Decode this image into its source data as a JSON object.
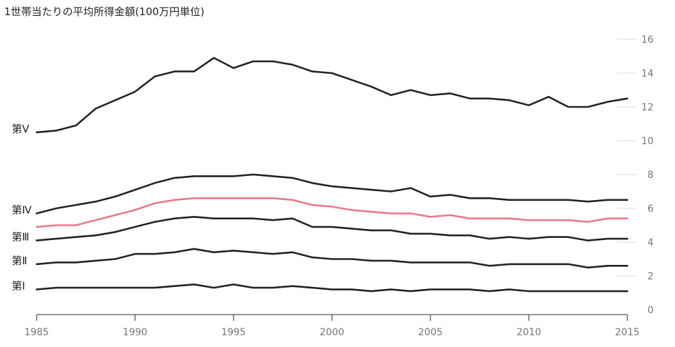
{
  "chart_data": {
    "type": "line",
    "title": "1世帯当たりの平均所得金額(100万円単位)",
    "xlabel": "",
    "ylabel": "",
    "xlim": [
      1985,
      2015
    ],
    "ylim": [
      0,
      16
    ],
    "x_ticks": [
      "1985",
      "1990",
      "1995",
      "2000",
      "2005",
      "2010",
      "2015"
    ],
    "y_ticks": [
      "0",
      "2",
      "4",
      "6",
      "8",
      "10",
      "12",
      "14",
      "16"
    ],
    "grid": "horizontal, right side",
    "x": [
      1985,
      1986,
      1987,
      1988,
      1989,
      1990,
      1991,
      1992,
      1993,
      1994,
      1995,
      1996,
      1997,
      1998,
      1999,
      2000,
      2001,
      2002,
      2003,
      2004,
      2005,
      2006,
      2007,
      2008,
      2009,
      2010,
      2011,
      2012,
      2013,
      2014,
      2015
    ],
    "series": [
      {
        "name": "第Ⅴ",
        "color": "#222222",
        "values": [
          10.5,
          10.6,
          10.9,
          11.9,
          12.4,
          12.9,
          13.8,
          14.1,
          14.1,
          14.9,
          14.3,
          14.7,
          14.7,
          14.5,
          14.1,
          14.0,
          13.6,
          13.2,
          12.7,
          13.0,
          12.7,
          12.8,
          12.5,
          12.5,
          12.4,
          12.1,
          12.6,
          12.0,
          12.0,
          12.3,
          12.5
        ]
      },
      {
        "name": "第Ⅳ",
        "color": "#222222",
        "values": [
          5.7,
          6.0,
          6.2,
          6.4,
          6.7,
          7.1,
          7.5,
          7.8,
          7.9,
          7.9,
          7.9,
          8.0,
          7.9,
          7.8,
          7.5,
          7.3,
          7.2,
          7.1,
          7.0,
          7.2,
          6.7,
          6.8,
          6.6,
          6.6,
          6.5,
          6.5,
          6.5,
          6.5,
          6.4,
          6.5,
          6.5
        ]
      },
      {
        "name": "",
        "color": "#e8788a",
        "values": [
          4.9,
          5.0,
          5.0,
          5.3,
          5.6,
          5.9,
          6.3,
          6.5,
          6.6,
          6.6,
          6.6,
          6.6,
          6.6,
          6.5,
          6.2,
          6.1,
          5.9,
          5.8,
          5.7,
          5.7,
          5.5,
          5.6,
          5.4,
          5.4,
          5.4,
          5.3,
          5.3,
          5.3,
          5.2,
          5.4,
          5.4
        ]
      },
      {
        "name": "第Ⅲ",
        "color": "#222222",
        "values": [
          4.1,
          4.2,
          4.3,
          4.4,
          4.6,
          4.9,
          5.2,
          5.4,
          5.5,
          5.4,
          5.4,
          5.4,
          5.3,
          5.4,
          4.9,
          4.9,
          4.8,
          4.7,
          4.7,
          4.5,
          4.5,
          4.4,
          4.4,
          4.2,
          4.3,
          4.2,
          4.3,
          4.3,
          4.1,
          4.2,
          4.2
        ]
      },
      {
        "name": "第Ⅱ",
        "color": "#222222",
        "values": [
          2.7,
          2.8,
          2.8,
          2.9,
          3.0,
          3.3,
          3.3,
          3.4,
          3.6,
          3.4,
          3.5,
          3.4,
          3.3,
          3.4,
          3.1,
          3.0,
          3.0,
          2.9,
          2.9,
          2.8,
          2.8,
          2.8,
          2.8,
          2.6,
          2.7,
          2.7,
          2.7,
          2.7,
          2.5,
          2.6,
          2.6
        ]
      },
      {
        "name": "第Ⅰ",
        "color": "#222222",
        "values": [
          1.2,
          1.3,
          1.3,
          1.3,
          1.3,
          1.3,
          1.3,
          1.4,
          1.5,
          1.3,
          1.5,
          1.3,
          1.3,
          1.4,
          1.3,
          1.2,
          1.2,
          1.1,
          1.2,
          1.1,
          1.2,
          1.2,
          1.2,
          1.1,
          1.2,
          1.1,
          1.1,
          1.1,
          1.1,
          1.1,
          1.1
        ]
      }
    ]
  }
}
